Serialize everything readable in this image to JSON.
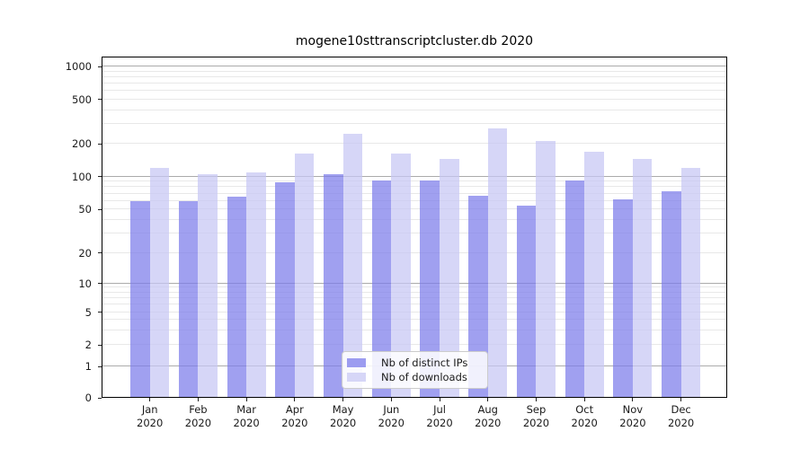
{
  "title": "mogene10sttranscriptcluster.db 2020",
  "chart_data": {
    "type": "bar",
    "title": "mogene10sttranscriptcluster.db 2020",
    "categories": [
      "Jan 2020",
      "Feb 2020",
      "Mar 2020",
      "Apr 2020",
      "May 2020",
      "Jun 2020",
      "Jul 2020",
      "Aug 2020",
      "Sep 2020",
      "Oct 2020",
      "Nov 2020",
      "Dec 2020"
    ],
    "x_tick_months": [
      "Jan",
      "Feb",
      "Mar",
      "Apr",
      "May",
      "Jun",
      "Jul",
      "Aug",
      "Sep",
      "Oct",
      "Nov",
      "Dec"
    ],
    "x_tick_year": "2020",
    "series": [
      {
        "name": "Nb of distinct IPs",
        "color": "#9c9cf0",
        "fill": "rgba(123,123,234,0.72)",
        "values": [
          60,
          60,
          65,
          89,
          106,
          93,
          93,
          67,
          54,
          93,
          62,
          74
        ]
      },
      {
        "name": "Nb of downloads",
        "color": "#d6d6f7",
        "fill": "rgba(198,198,244,0.72)",
        "values": [
          120,
          105,
          109,
          164,
          246,
          164,
          145,
          276,
          212,
          170,
          145,
          120
        ]
      }
    ],
    "yscale": "symlog",
    "ylim": [
      0,
      1250
    ],
    "y_tick_values": [
      1000,
      500,
      200,
      100,
      50,
      20,
      10,
      5,
      2,
      1,
      0
    ],
    "y_tick_labels": [
      "1000",
      "500",
      "200",
      "100",
      "50",
      "20",
      "10",
      "5",
      "2",
      "1",
      "0"
    ],
    "grid": true,
    "legend_position": "lower center"
  },
  "style_colors": {
    "major_grid": "#ababab",
    "minor_grid": "#e8e8e8",
    "spine": "#000000",
    "text": "#1a1a1a",
    "legend_border": "#cccccc"
  }
}
